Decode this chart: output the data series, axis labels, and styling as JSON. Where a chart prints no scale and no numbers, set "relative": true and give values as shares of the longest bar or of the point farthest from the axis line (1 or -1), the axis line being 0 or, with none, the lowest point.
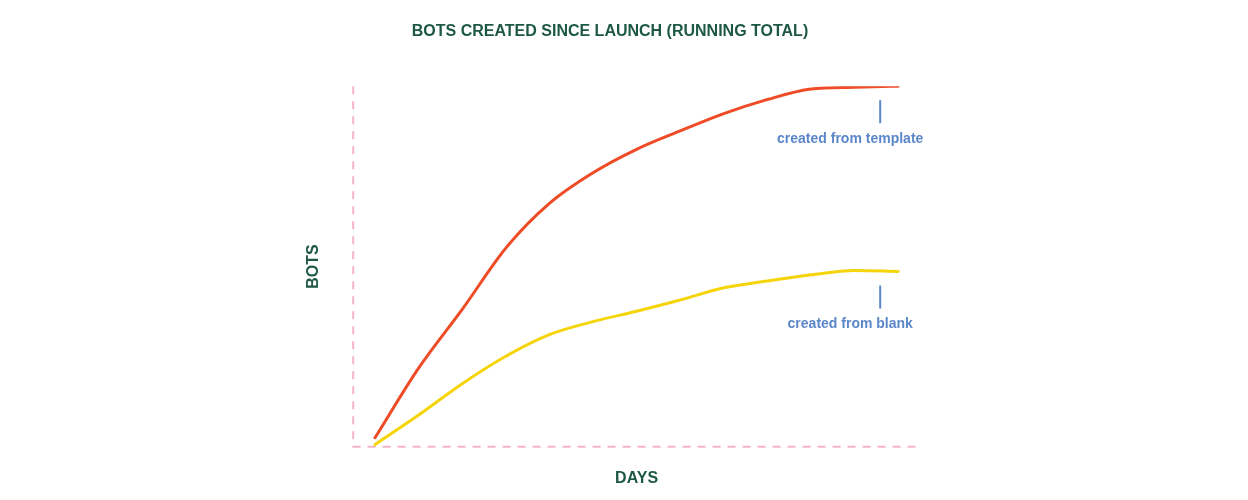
{
  "chart_data": {
    "type": "line",
    "title": "BOTS CREATED SINCE LAUNCH (RUNNING TOTAL)",
    "xlabel": "DAYS",
    "ylabel": "BOTS",
    "relative": true,
    "legend": false,
    "grid": false,
    "marker": "none",
    "tick_labels": false,
    "categories": [
      null,
      null,
      null,
      null,
      null,
      null,
      null,
      null,
      null,
      null,
      null,
      null,
      null
    ],
    "series": [
      {
        "name": "created from template",
        "color": "#ee4b26",
        "values": [
          0.025,
          0.218,
          0.381,
          0.551,
          0.675,
          0.76,
          0.825,
          0.876,
          0.924,
          0.963,
          0.992,
          0.997,
          1
        ]
      },
      {
        "name": "created from blank",
        "color": "#f5d50a",
        "values": [
          0.006,
          0.088,
          0.175,
          0.251,
          0.311,
          0.347,
          0.376,
          0.407,
          0.441,
          0.46,
          0.477,
          0.489,
          0.486
        ]
      }
    ]
  }
}
